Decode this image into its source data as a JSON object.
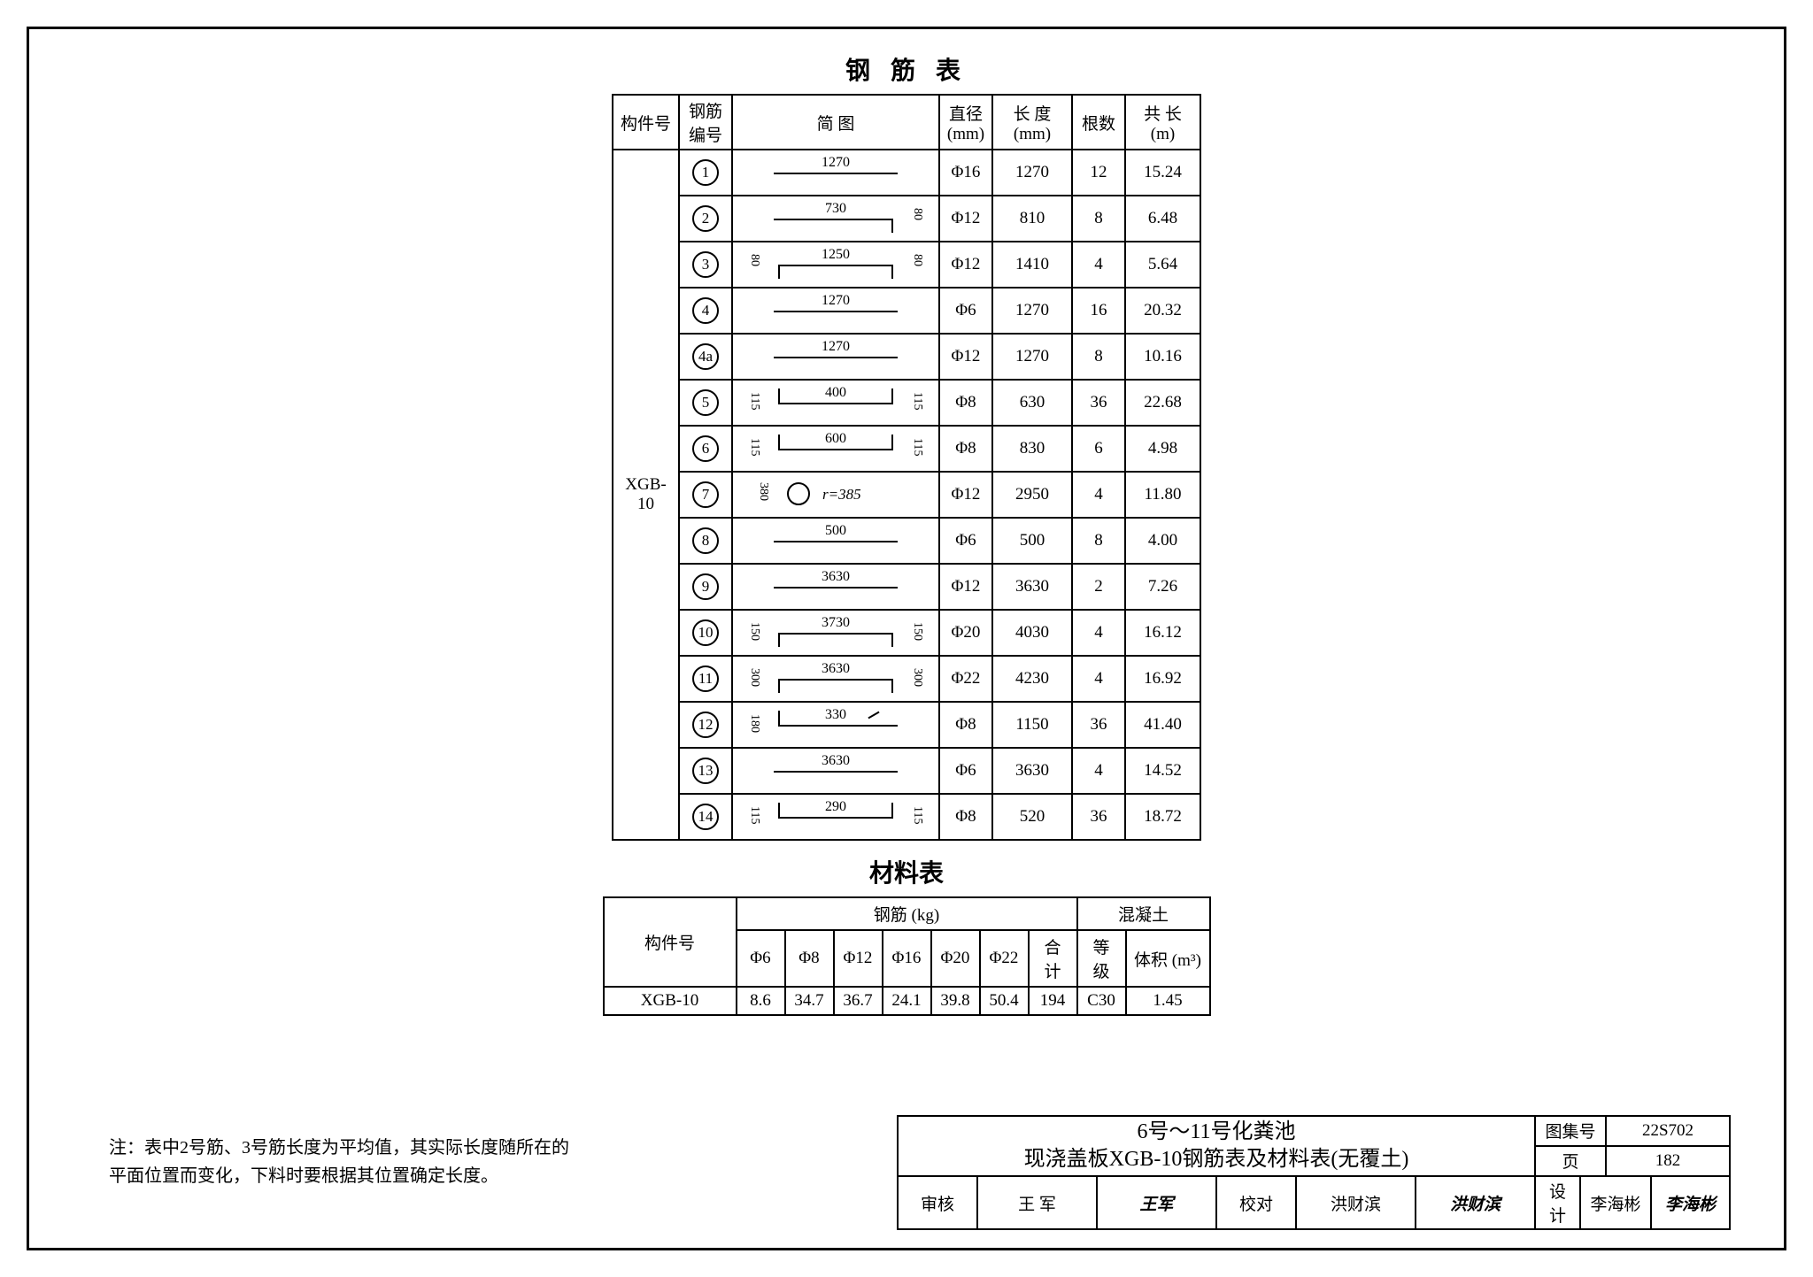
{
  "rebar_title": "钢 筋  表",
  "rebar_headers": {
    "member": "构件号",
    "rebar_no": "钢筋\n编号",
    "diagram": "简  图",
    "diameter": "直径\n(mm)",
    "length": "长 度\n(mm)",
    "qty": "根数",
    "total": "共 长\n(m)"
  },
  "member_id": "XGB-10",
  "rebar_rows": [
    {
      "no": "1",
      "dim_main": "1270",
      "left": "",
      "right": "",
      "dia": "Φ16",
      "len": "1270",
      "qty": "12",
      "total": "15.24",
      "shape": "straight"
    },
    {
      "no": "2",
      "dim_main": "730",
      "left": "",
      "right": "80",
      "dia": "Φ12",
      "len": "810",
      "qty": "8",
      "total": "6.48",
      "shape": "L-right"
    },
    {
      "no": "3",
      "dim_main": "1250",
      "left": "80",
      "right": "80",
      "dia": "Φ12",
      "len": "1410",
      "qty": "4",
      "total": "5.64",
      "shape": "U"
    },
    {
      "no": "4",
      "dim_main": "1270",
      "left": "",
      "right": "",
      "dia": "Φ6",
      "len": "1270",
      "qty": "16",
      "total": "20.32",
      "shape": "straight"
    },
    {
      "no": "4a",
      "dim_main": "1270",
      "left": "",
      "right": "",
      "dia": "Φ12",
      "len": "1270",
      "qty": "8",
      "total": "10.16",
      "shape": "straight"
    },
    {
      "no": "5",
      "dim_main": "400",
      "left": "115",
      "right": "115",
      "dia": "Φ8",
      "len": "630",
      "qty": "36",
      "total": "22.68",
      "shape": "U-down"
    },
    {
      "no": "6",
      "dim_main": "600",
      "left": "115",
      "right": "115",
      "dia": "Φ8",
      "len": "830",
      "qty": "6",
      "total": "4.98",
      "shape": "U-down"
    },
    {
      "no": "7",
      "dim_main": "r=385",
      "left": "380",
      "right": "",
      "dia": "Φ12",
      "len": "2950",
      "qty": "4",
      "total": "11.80",
      "shape": "circle"
    },
    {
      "no": "8",
      "dim_main": "500",
      "left": "",
      "right": "",
      "dia": "Φ6",
      "len": "500",
      "qty": "8",
      "total": "4.00",
      "shape": "straight"
    },
    {
      "no": "9",
      "dim_main": "3630",
      "left": "",
      "right": "",
      "dia": "Φ12",
      "len": "3630",
      "qty": "2",
      "total": "7.26",
      "shape": "straight"
    },
    {
      "no": "10",
      "dim_main": "3730",
      "left": "150",
      "right": "150",
      "dia": "Φ20",
      "len": "4030",
      "qty": "4",
      "total": "16.12",
      "shape": "U"
    },
    {
      "no": "11",
      "dim_main": "3630",
      "left": "300",
      "right": "300",
      "dia": "Φ22",
      "len": "4230",
      "qty": "4",
      "total": "16.92",
      "shape": "U"
    },
    {
      "no": "12",
      "dim_main": "330",
      "left": "180",
      "right": "",
      "dia": "Φ8",
      "len": "1150",
      "qty": "36",
      "total": "41.40",
      "shape": "hook"
    },
    {
      "no": "13",
      "dim_main": "3630",
      "left": "",
      "right": "",
      "dia": "Φ6",
      "len": "3630",
      "qty": "4",
      "total": "14.52",
      "shape": "straight"
    },
    {
      "no": "14",
      "dim_main": "290",
      "left": "115",
      "right": "115",
      "dia": "Φ8",
      "len": "520",
      "qty": "36",
      "total": "18.72",
      "shape": "U-down"
    }
  ],
  "mat_title": "材料表",
  "mat_headers": {
    "member": "构件号",
    "rebar_group": "钢筋 (kg)",
    "concrete_group": "混凝土",
    "d6": "Φ6",
    "d8": "Φ8",
    "d12": "Φ12",
    "d16": "Φ16",
    "d20": "Φ20",
    "d22": "Φ22",
    "sum": "合计",
    "grade": "等级",
    "vol": "体积 (m³)"
  },
  "mat_row": {
    "member": "XGB-10",
    "d6": "8.6",
    "d8": "34.7",
    "d12": "36.7",
    "d16": "24.1",
    "d20": "39.8",
    "d22": "50.4",
    "sum": "194",
    "grade": "C30",
    "vol": "1.45"
  },
  "note_label": "注：",
  "note_text": "表中2号筋、3号筋长度为平均值，其实际长度随所在的\n平面位置而变化，下料时要根据其位置确定长度。",
  "title_block": {
    "line1": "6号～11号化粪池",
    "line2": "现浇盖板XGB-10钢筋表及材料表(无覆土)",
    "atlas_label": "图集号",
    "atlas": "22S702",
    "page_label": "页",
    "page": "182",
    "review_label": "审核",
    "reviewer": "王 军",
    "check_label": "校对",
    "checker": "洪财滨",
    "design_label": "设计",
    "designer": "李海彬"
  }
}
